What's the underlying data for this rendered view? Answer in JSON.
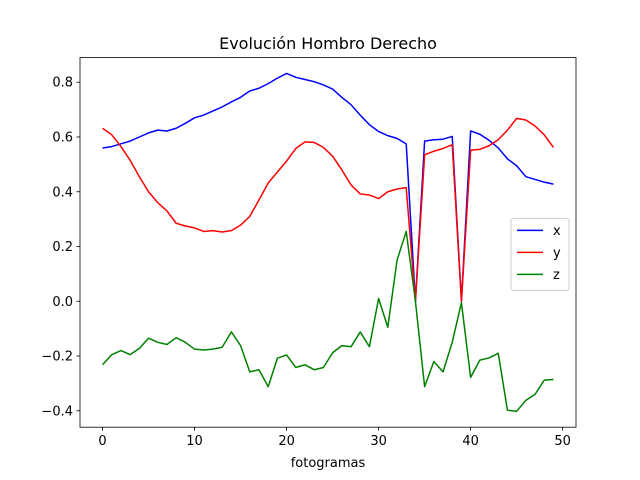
{
  "chart_data": {
    "type": "line",
    "title": "Evolución Hombro Derecho",
    "xlabel": "fotogramas",
    "ylabel": "",
    "xlim": [
      -2.45,
      51.45
    ],
    "ylim": [
      -0.46,
      0.89
    ],
    "xticks": [
      0,
      10,
      20,
      30,
      40,
      50
    ],
    "yticks": [
      -0.4,
      -0.2,
      0.0,
      0.2,
      0.4,
      0.6,
      0.8
    ],
    "xtick_labels": [
      "0",
      "10",
      "20",
      "30",
      "40",
      "50"
    ],
    "ytick_labels": [
      "−0.4",
      "−0.2",
      "0.0",
      "0.2",
      "0.4",
      "0.6",
      "0.8"
    ],
    "grid": false,
    "legend_position": "center-right",
    "x": [
      0,
      1,
      2,
      3,
      4,
      5,
      6,
      7,
      8,
      9,
      10,
      11,
      12,
      13,
      14,
      15,
      16,
      17,
      18,
      19,
      20,
      21,
      22,
      23,
      24,
      25,
      26,
      27,
      28,
      29,
      30,
      31,
      32,
      33,
      34,
      35,
      36,
      37,
      38,
      39,
      40,
      41,
      42,
      43,
      44,
      45,
      46,
      47,
      48,
      49
    ],
    "series": [
      {
        "name": "x",
        "color": "#0000ff",
        "values": [
          0.56,
          0.565,
          0.575,
          0.585,
          0.6,
          0.615,
          0.625,
          0.622,
          0.632,
          0.65,
          0.67,
          0.68,
          0.695,
          0.71,
          0.728,
          0.745,
          0.768,
          0.778,
          0.795,
          0.815,
          0.832,
          0.818,
          0.81,
          0.802,
          0.79,
          0.775,
          0.745,
          0.718,
          0.68,
          0.645,
          0.62,
          0.605,
          0.595,
          0.575,
          0.0,
          0.585,
          0.59,
          0.592,
          0.602,
          0.0,
          0.622,
          0.61,
          0.588,
          0.56,
          0.52,
          0.495,
          0.455,
          0.445,
          0.435,
          0.428
        ]
      },
      {
        "name": "y",
        "color": "#ff0000",
        "values": [
          0.632,
          0.608,
          0.565,
          0.515,
          0.455,
          0.4,
          0.36,
          0.33,
          0.285,
          0.275,
          0.268,
          0.255,
          0.258,
          0.253,
          0.258,
          0.278,
          0.31,
          0.37,
          0.432,
          0.472,
          0.512,
          0.558,
          0.582,
          0.58,
          0.562,
          0.53,
          0.48,
          0.425,
          0.392,
          0.388,
          0.375,
          0.4,
          0.41,
          0.415,
          0.0,
          0.535,
          0.548,
          0.558,
          0.572,
          0.0,
          0.552,
          0.555,
          0.568,
          0.59,
          0.625,
          0.668,
          0.662,
          0.64,
          0.608,
          0.562
        ]
      },
      {
        "name": "z",
        "color": "#008000",
        "values": [
          -0.232,
          -0.195,
          -0.18,
          -0.195,
          -0.172,
          -0.135,
          -0.15,
          -0.158,
          -0.133,
          -0.15,
          -0.175,
          -0.178,
          -0.175,
          -0.168,
          -0.112,
          -0.162,
          -0.258,
          -0.25,
          -0.312,
          -0.208,
          -0.196,
          -0.242,
          -0.232,
          -0.25,
          -0.242,
          -0.188,
          -0.162,
          -0.166,
          -0.112,
          -0.166,
          0.01,
          -0.095,
          0.15,
          0.255,
          0.0,
          -0.312,
          -0.22,
          -0.258,
          -0.15,
          -0.005,
          -0.278,
          -0.215,
          -0.207,
          -0.19,
          -0.398,
          -0.402,
          -0.362,
          -0.34,
          -0.288,
          -0.286
        ]
      }
    ]
  }
}
